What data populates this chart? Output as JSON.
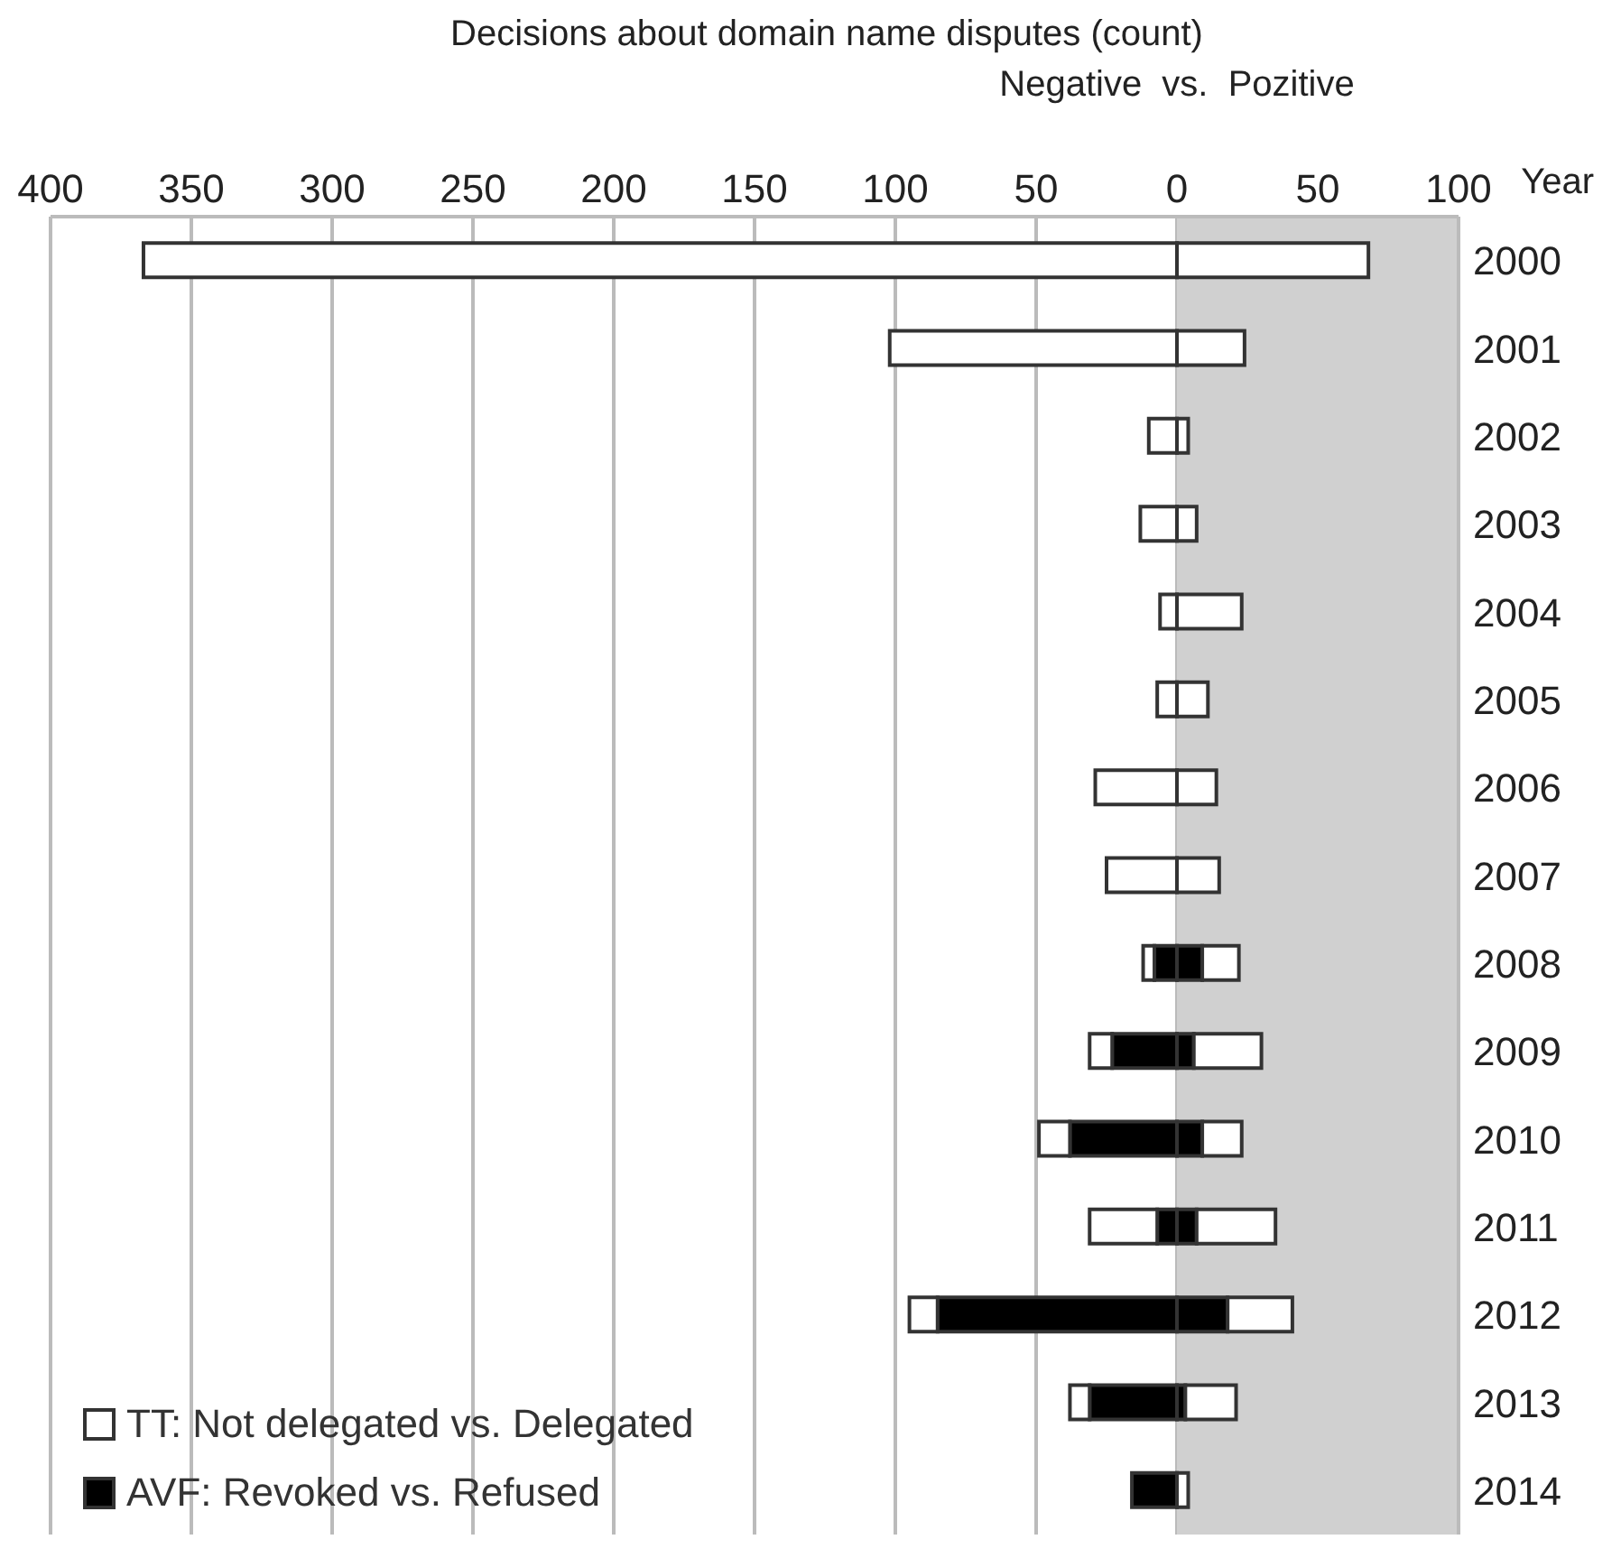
{
  "chart_data": {
    "type": "bar",
    "orientation": "horizontal",
    "stacked": true,
    "title": "Decisions about domain name disputes (count)",
    "subtitle": "Negative  vs.  Pozitive",
    "ylabel": "Year",
    "categories": [
      "2000",
      "2001",
      "2002",
      "2003",
      "2004",
      "2005",
      "2006",
      "2007",
      "2008",
      "2009",
      "2010",
      "2011",
      "2012",
      "2013",
      "2014"
    ],
    "series": [
      {
        "name": "AVF: Revoked vs. Refused",
        "color": "#000000",
        "values": [
          0,
          0,
          0,
          0,
          0,
          0,
          0,
          0,
          -8,
          -23,
          -38,
          -7,
          -85,
          -31,
          -16
        ]
      },
      {
        "color": "#000000",
        "values": [
          0,
          0,
          0,
          0,
          0,
          0,
          0,
          0,
          9,
          6,
          9,
          7,
          18,
          3,
          0
        ]
      },
      {
        "name": "TT: Not delegated vs. Delegated",
        "color": "#ffffff",
        "values": [
          -367,
          -102,
          -10,
          -13,
          -6,
          -7,
          -29,
          -25,
          -4,
          -8,
          -11,
          -24,
          -10,
          -7,
          0
        ]
      },
      {
        "color": "#ffffff",
        "values": [
          68,
          24,
          4,
          7,
          23,
          11,
          14,
          15,
          13,
          24,
          14,
          28,
          23,
          18,
          4
        ]
      }
    ],
    "xlim": [
      -400,
      100
    ],
    "xticks": [
      {
        "value": -400,
        "label": "400"
      },
      {
        "value": -350,
        "label": "350"
      },
      {
        "value": -300,
        "label": "300"
      },
      {
        "value": -250,
        "label": "250"
      },
      {
        "value": -200,
        "label": "200"
      },
      {
        "value": -150,
        "label": "150"
      },
      {
        "value": -100,
        "label": "100"
      },
      {
        "value": -50,
        "label": "50"
      },
      0,
      50,
      100
    ],
    "bands": [
      {
        "axis": "x",
        "from": 0,
        "to": 100,
        "color": "#d0d0d0"
      }
    ],
    "grid": "x",
    "legend": "bottom left"
  }
}
